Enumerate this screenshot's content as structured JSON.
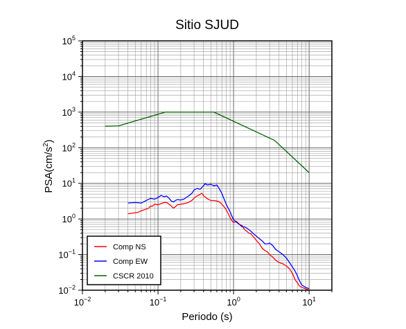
{
  "chart_data": {
    "type": "line",
    "title": "Sitio SJUD",
    "xlabel": "Periodo (s)",
    "ylabel_base": "PSA(cm/s",
    "ylabel_exp": "2",
    "ylabel_close": ")",
    "x_scale": "log",
    "y_scale": "log",
    "xlim": [
      0.01,
      20
    ],
    "ylim": [
      0.01,
      100000
    ],
    "x_ticks": [
      {
        "value": 0.01,
        "base": "10",
        "exp": "−2"
      },
      {
        "value": 0.1,
        "base": "10",
        "exp": "−1"
      },
      {
        "value": 1,
        "base": "10",
        "exp": "0"
      },
      {
        "value": 10,
        "base": "10",
        "exp": "1"
      }
    ],
    "y_ticks": [
      {
        "value": 0.01,
        "base": "10",
        "exp": "−2"
      },
      {
        "value": 0.1,
        "base": "10",
        "exp": "−1"
      },
      {
        "value": 1,
        "base": "10",
        "exp": "0"
      },
      {
        "value": 10,
        "base": "10",
        "exp": "1"
      },
      {
        "value": 100,
        "base": "10",
        "exp": "2"
      },
      {
        "value": 1000,
        "base": "10",
        "exp": "3"
      },
      {
        "value": 10000,
        "base": "10",
        "exp": "4"
      },
      {
        "value": 100000,
        "base": "10",
        "exp": "5"
      }
    ],
    "grid": true,
    "legend_position": "bottom-left",
    "series": [
      {
        "name": "Comp NS",
        "color": "#ff0000",
        "points": [
          [
            0.04,
            1.4
          ],
          [
            0.045,
            1.45
          ],
          [
            0.05,
            1.5
          ],
          [
            0.055,
            1.55
          ],
          [
            0.06,
            1.7
          ],
          [
            0.065,
            1.8
          ],
          [
            0.07,
            1.9
          ],
          [
            0.075,
            2.0
          ],
          [
            0.08,
            2.3
          ],
          [
            0.085,
            2.3
          ],
          [
            0.09,
            2.6
          ],
          [
            0.1,
            2.5
          ],
          [
            0.11,
            2.7
          ],
          [
            0.12,
            2.9
          ],
          [
            0.13,
            2.9
          ],
          [
            0.14,
            2.6
          ],
          [
            0.15,
            2.3
          ],
          [
            0.16,
            2.0
          ],
          [
            0.17,
            2.2
          ],
          [
            0.18,
            2.5
          ],
          [
            0.2,
            2.6
          ],
          [
            0.22,
            2.7
          ],
          [
            0.24,
            2.8
          ],
          [
            0.26,
            3.0
          ],
          [
            0.28,
            3.3
          ],
          [
            0.3,
            3.8
          ],
          [
            0.32,
            4.3
          ],
          [
            0.35,
            4.7
          ],
          [
            0.38,
            5.3
          ],
          [
            0.4,
            4.5
          ],
          [
            0.45,
            3.7
          ],
          [
            0.5,
            3.3
          ],
          [
            0.55,
            3.3
          ],
          [
            0.6,
            3.2
          ],
          [
            0.65,
            3.0
          ],
          [
            0.7,
            2.6
          ],
          [
            0.75,
            2.2
          ],
          [
            0.8,
            1.8
          ],
          [
            0.85,
            1.4
          ],
          [
            0.9,
            1.1
          ],
          [
            0.95,
            0.9
          ],
          [
            1.0,
            0.8
          ],
          [
            1.1,
            0.85
          ],
          [
            1.2,
            0.7
          ],
          [
            1.3,
            0.65
          ],
          [
            1.4,
            0.5
          ],
          [
            1.5,
            0.45
          ],
          [
            1.6,
            0.4
          ],
          [
            1.7,
            0.38
          ],
          [
            1.8,
            0.33
          ],
          [
            2.0,
            0.25
          ],
          [
            2.2,
            0.2
          ],
          [
            2.4,
            0.15
          ],
          [
            2.6,
            0.13
          ],
          [
            2.8,
            0.12
          ],
          [
            3.0,
            0.1
          ],
          [
            3.3,
            0.085
          ],
          [
            3.6,
            0.07
          ],
          [
            4.0,
            0.06
          ],
          [
            4.5,
            0.055
          ],
          [
            5.0,
            0.048
          ],
          [
            5.5,
            0.04
          ],
          [
            6.0,
            0.03
          ],
          [
            6.5,
            0.02
          ],
          [
            7.0,
            0.016
          ],
          [
            7.5,
            0.013
          ],
          [
            8.0,
            0.012
          ],
          [
            9.0,
            0.011
          ],
          [
            10.0,
            0.01
          ]
        ]
      },
      {
        "name": "Comp EW",
        "color": "#0000ff",
        "points": [
          [
            0.04,
            2.8
          ],
          [
            0.05,
            2.9
          ],
          [
            0.06,
            2.8
          ],
          [
            0.07,
            3.3
          ],
          [
            0.08,
            3.8
          ],
          [
            0.09,
            3.6
          ],
          [
            0.1,
            4.0
          ],
          [
            0.11,
            4.6
          ],
          [
            0.12,
            4.2
          ],
          [
            0.13,
            4.4
          ],
          [
            0.14,
            3.8
          ],
          [
            0.15,
            3.2
          ],
          [
            0.16,
            3.0
          ],
          [
            0.17,
            3.3
          ],
          [
            0.18,
            3.5
          ],
          [
            0.2,
            3.4
          ],
          [
            0.22,
            3.6
          ],
          [
            0.24,
            4.1
          ],
          [
            0.26,
            4.6
          ],
          [
            0.28,
            5.2
          ],
          [
            0.3,
            6.5
          ],
          [
            0.33,
            7.2
          ],
          [
            0.36,
            6.8
          ],
          [
            0.4,
            8.5
          ],
          [
            0.42,
            9.8
          ],
          [
            0.45,
            9.0
          ],
          [
            0.5,
            9.4
          ],
          [
            0.55,
            8.5
          ],
          [
            0.6,
            9.0
          ],
          [
            0.65,
            7.0
          ],
          [
            0.7,
            5.2
          ],
          [
            0.75,
            3.6
          ],
          [
            0.8,
            2.6
          ],
          [
            0.85,
            2.0
          ],
          [
            0.9,
            1.6
          ],
          [
            0.95,
            1.2
          ],
          [
            1.0,
            0.95
          ],
          [
            1.1,
            0.8
          ],
          [
            1.2,
            0.7
          ],
          [
            1.3,
            0.6
          ],
          [
            1.4,
            0.6
          ],
          [
            1.5,
            0.55
          ],
          [
            1.6,
            0.5
          ],
          [
            1.7,
            0.45
          ],
          [
            1.8,
            0.4
          ],
          [
            2.0,
            0.33
          ],
          [
            2.2,
            0.28
          ],
          [
            2.4,
            0.24
          ],
          [
            2.6,
            0.2
          ],
          [
            2.8,
            0.2
          ],
          [
            3.0,
            0.21
          ],
          [
            3.3,
            0.18
          ],
          [
            3.6,
            0.14
          ],
          [
            4.0,
            0.12
          ],
          [
            4.5,
            0.1
          ],
          [
            5.0,
            0.08
          ],
          [
            5.5,
            0.06
          ],
          [
            6.0,
            0.045
          ],
          [
            6.5,
            0.035
          ],
          [
            7.0,
            0.025
          ],
          [
            7.5,
            0.018
          ],
          [
            8.0,
            0.014
          ],
          [
            9.0,
            0.012
          ],
          [
            10.0,
            0.011
          ]
        ]
      },
      {
        "name": "CSCR 2010",
        "color": "#006400",
        "points": [
          [
            0.02,
            400
          ],
          [
            0.03,
            410
          ],
          [
            0.125,
            1000
          ],
          [
            0.55,
            1000
          ],
          [
            3.5,
            160
          ],
          [
            10.0,
            20
          ]
        ]
      }
    ]
  }
}
